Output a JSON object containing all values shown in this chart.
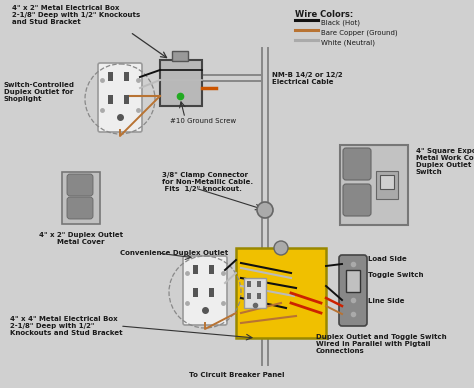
{
  "bg_color": "#d0d0d0",
  "wire_legend_title": "Wire Colors:",
  "wire_colors": {
    "black": {
      "color": "#111111",
      "label": "Black (Hot)"
    },
    "copper": {
      "color": "#b87333",
      "label": "Bare Copper (Ground)"
    },
    "white": {
      "color": "#bbbbbb",
      "label": "White (Neutral)"
    }
  },
  "labels": {
    "top_box": "4\" x 2\" Metal Electrical Box\n2-1/8\" Deep with 1/2\" Knockouts\nand Stud Bracket",
    "switch_controlled": "Switch-Controlled\nDuplex Outlet for\nShoplight",
    "ground_screw": "#10 Ground Screw",
    "clamp_connector": "3/8\" Clamp Connector\nfor Non-Metallic Cable.\n Fits  1/2\" knockout.",
    "duplex_cover": "4\" x 2\" Duplex Outlet\nMetal Cover",
    "nm_cable": "NM-B 14/2 or 12/2\nElectrical Cable",
    "square_cover": "4\" Square Exposed\nMetal Work Cover with\nDuplex Outlet & Toggle\nSwitch",
    "convenience": "Convenience Duplex Outlet",
    "bottom_box_label": "4\" x 4\" Metal Electrical Box\n2-1/8\" Deep with 1/2\"\nKnockouts and Stud Bracket",
    "load_side": "Load Side",
    "toggle_switch_lbl": "Toggle Switch",
    "line_side": "Line Side",
    "duplex_toggle": "Duplex Outlet and Toggle Switch\nWired in Parallel with Pigtail\nConnections",
    "circuit_breaker": "To Circuit Breaker Panel"
  }
}
